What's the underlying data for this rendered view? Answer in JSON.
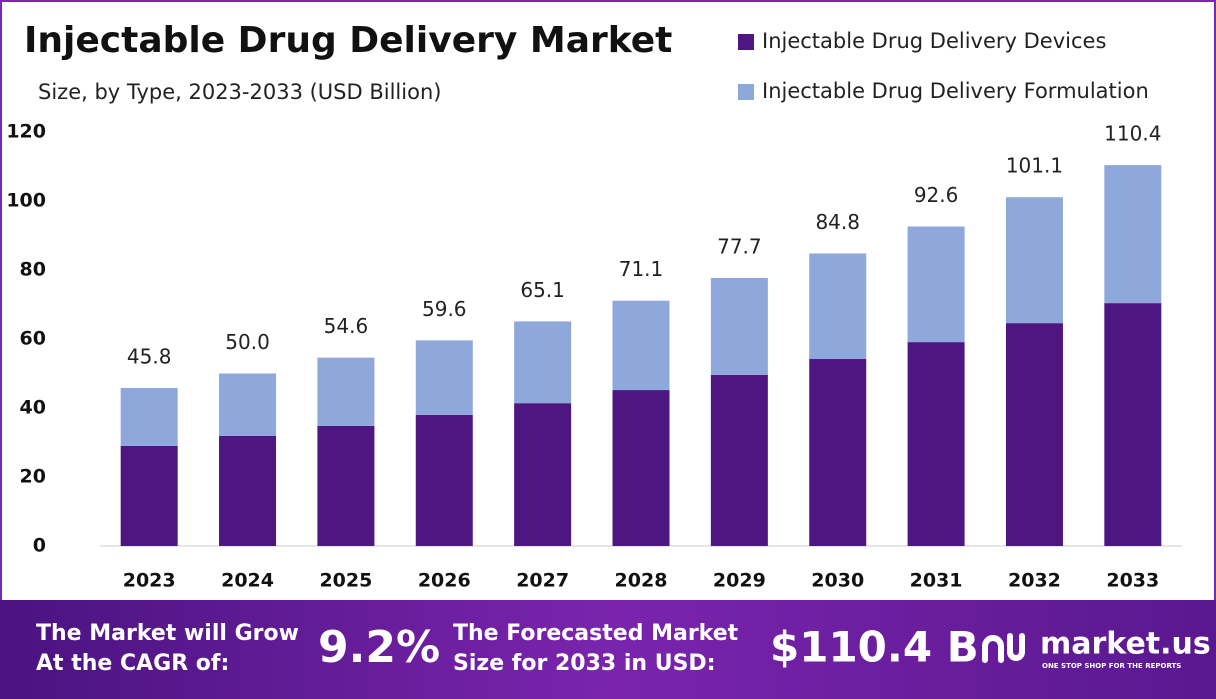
{
  "chart_data": {
    "type": "stacked-bar",
    "title": "Injectable Drug Delivery Market",
    "subtitle": "Size, by Type, 2023-2033 (USD Billion)",
    "categories": [
      "2023",
      "2024",
      "2025",
      "2026",
      "2027",
      "2028",
      "2029",
      "2030",
      "2031",
      "2032",
      "2033"
    ],
    "series": [
      {
        "name": "Injectable Drug Delivery Devices",
        "color": "#4e1681",
        "values": [
          29.0,
          31.9,
          34.8,
          38.0,
          41.4,
          45.2,
          49.6,
          54.2,
          59.1,
          64.6,
          70.4
        ]
      },
      {
        "name": "Injectable Drug Delivery Formulation",
        "color": "#8fa8dc",
        "values": [
          16.8,
          18.1,
          19.8,
          21.6,
          23.7,
          25.9,
          28.1,
          30.6,
          33.5,
          36.5,
          40.0
        ]
      }
    ],
    "totals": {
      "values": [
        45.8,
        50,
        54.6,
        59.6,
        65.1,
        71.1,
        77.7,
        84.8,
        92.6,
        101.1,
        110.4
      ],
      "value_labels": [
        "45.8",
        "50.0",
        "54.6",
        "59.6",
        "65.1",
        "71.1",
        "77.7",
        "84.8",
        "92.6",
        "101.1",
        "110.4"
      ]
    },
    "ylim": [
      0,
      120
    ],
    "yticks": [
      0,
      20,
      40,
      60,
      80,
      100,
      120
    ],
    "grid": false
  },
  "footer": {
    "cagr_text": [
      "The Market will Grow",
      "At the CAGR of:"
    ],
    "cagr_value": "9.2%",
    "forecast_text": [
      "The Forecasted Market",
      "Size for 2033 in USD:"
    ],
    "forecast_value": "$110.4 B",
    "brand": "market.us",
    "tagline": "ONE STOP SHOP FOR THE REPORTS"
  }
}
